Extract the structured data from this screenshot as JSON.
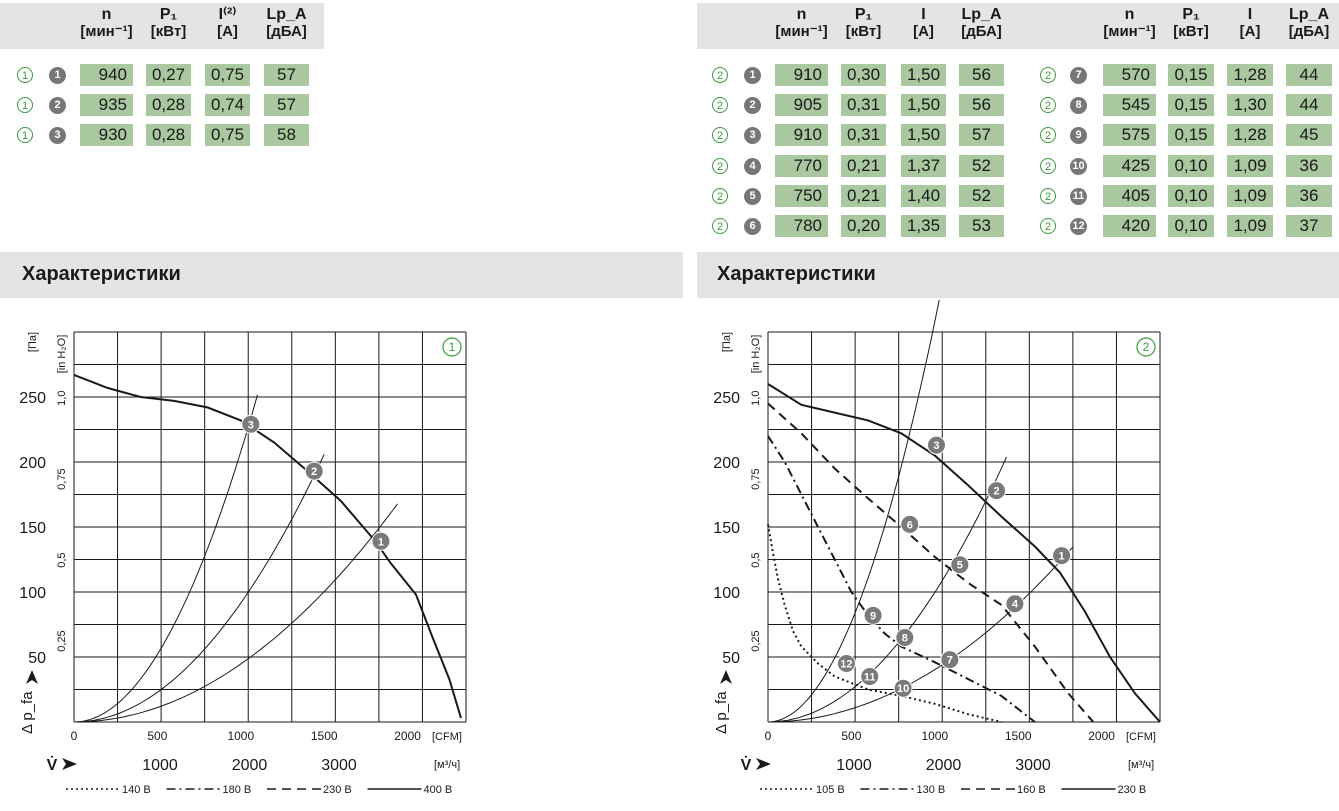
{
  "left_table": {
    "headers": [
      {
        "name": "n",
        "unit": "[мин⁻¹]"
      },
      {
        "name": "P₁",
        "unit": "[кВт]"
      },
      {
        "name": "I⁽²⁾",
        "unit": "[A]"
      },
      {
        "name": "Lp_A",
        "unit": "[дБА]"
      }
    ],
    "rows": [
      {
        "ring": "1",
        "id": "1",
        "n": "940",
        "p": "0,27",
        "i": "0,75",
        "lp": "57"
      },
      {
        "ring": "1",
        "id": "2",
        "n": "935",
        "p": "0,28",
        "i": "0,74",
        "lp": "57"
      },
      {
        "ring": "1",
        "id": "3",
        "n": "930",
        "p": "0,28",
        "i": "0,75",
        "lp": "58"
      }
    ]
  },
  "right_table": {
    "headers": [
      {
        "name": "n",
        "unit": "[мин⁻¹]"
      },
      {
        "name": "P₁",
        "unit": "[кВт]"
      },
      {
        "name": "I",
        "unit": "[A]"
      },
      {
        "name": "Lp_A",
        "unit": "[дБА]"
      }
    ],
    "rows_a": [
      {
        "ring": "2",
        "id": "1",
        "n": "910",
        "p": "0,30",
        "i": "1,50",
        "lp": "56"
      },
      {
        "ring": "2",
        "id": "2",
        "n": "905",
        "p": "0,31",
        "i": "1,50",
        "lp": "56"
      },
      {
        "ring": "2",
        "id": "3",
        "n": "910",
        "p": "0,31",
        "i": "1,50",
        "lp": "57"
      },
      {
        "ring": "2",
        "id": "4",
        "n": "770",
        "p": "0,21",
        "i": "1,37",
        "lp": "52"
      },
      {
        "ring": "2",
        "id": "5",
        "n": "750",
        "p": "0,21",
        "i": "1,40",
        "lp": "52"
      },
      {
        "ring": "2",
        "id": "6",
        "n": "780",
        "p": "0,20",
        "i": "1,35",
        "lp": "53"
      }
    ],
    "rows_b": [
      {
        "ring": "2",
        "id": "7",
        "n": "570",
        "p": "0,15",
        "i": "1,28",
        "lp": "44"
      },
      {
        "ring": "2",
        "id": "8",
        "n": "545",
        "p": "0,15",
        "i": "1,30",
        "lp": "44"
      },
      {
        "ring": "2",
        "id": "9",
        "n": "575",
        "p": "0,15",
        "i": "1,28",
        "lp": "45"
      },
      {
        "ring": "2",
        "id": "10",
        "n": "425",
        "p": "0,10",
        "i": "1,09",
        "lp": "36"
      },
      {
        "ring": "2",
        "id": "11",
        "n": "405",
        "p": "0,10",
        "i": "1,09",
        "lp": "36"
      },
      {
        "ring": "2",
        "id": "12",
        "n": "420",
        "p": "0,10",
        "i": "1,09",
        "lp": "37"
      }
    ]
  },
  "sections": {
    "left_title": "Характеристики",
    "right_title": "Характеристики"
  },
  "colors": {
    "cell_green": "#a9c89f",
    "ring_green": "#3a9a3a",
    "marker_grey": "#777777",
    "band": "#e4e4e4"
  },
  "chart_data": [
    {
      "type": "line",
      "badge": "1",
      "y_ticks_pa": [
        50,
        100,
        150,
        200,
        250
      ],
      "y_ticks_inh2o": [
        "0,25",
        "0,5",
        "0,75",
        "1,0"
      ],
      "y_unit_pa": "[Па]",
      "y_unit_inh2o": "[in H₂O]",
      "y_label": "Δ p_fa",
      "x_ticks_cfm": [
        0,
        500,
        1000,
        1500,
        2000
      ],
      "x_unit_cfm": "[CFM]",
      "x_ticks_m3h": [
        1000,
        2000,
        3000
      ],
      "x_unit_m3h": "[м³/ч]",
      "x_label": "V̇",
      "xlim_cfm": [
        0,
        2350
      ],
      "ylim_pa": [
        0,
        300
      ],
      "curves": [
        {
          "label": "400 В",
          "style": "solid",
          "points": [
            [
              0,
              267
            ],
            [
              200,
              257
            ],
            [
              400,
              250
            ],
            [
              600,
              247
            ],
            [
              800,
              242
            ],
            [
              1000,
              232
            ],
            [
              1200,
              215
            ],
            [
              1400,
              193
            ],
            [
              1600,
              170
            ],
            [
              1800,
              140
            ],
            [
              1900,
              122
            ],
            [
              2050,
              98
            ],
            [
              2150,
              65
            ],
            [
              2250,
              33
            ],
            [
              2320,
              3
            ]
          ]
        }
      ],
      "system_curves": [
        {
          "k": 0.000208,
          "x_end": 1100
        },
        {
          "k": 9.15e-05,
          "x_end": 1500
        },
        {
          "k": 4.46e-05,
          "x_end": 1940
        }
      ],
      "operating_points": [
        {
          "id": "3",
          "x": 1060,
          "y": 229
        },
        {
          "id": "2",
          "x": 1440,
          "y": 193
        },
        {
          "id": "1",
          "x": 1840,
          "y": 139
        }
      ],
      "legend": [
        {
          "label": "140 В",
          "style": "dotted"
        },
        {
          "label": "180 В",
          "style": "dashdot"
        },
        {
          "label": "230 В",
          "style": "dashed"
        },
        {
          "label": "400 В",
          "style": "solid"
        }
      ]
    },
    {
      "type": "line",
      "badge": "2",
      "y_ticks_pa": [
        50,
        100,
        150,
        200,
        250
      ],
      "y_ticks_inh2o": [
        "0,25",
        "0,5",
        "0,75",
        "1,0"
      ],
      "y_unit_pa": "[Па]",
      "y_unit_inh2o": "[in H₂O]",
      "y_label": "Δ p_fa",
      "x_ticks_cfm": [
        0,
        500,
        1000,
        1500,
        2000
      ],
      "x_unit_cfm": "[CFM]",
      "x_ticks_m3h": [
        1000,
        2000,
        3000
      ],
      "x_unit_m3h": "[м³/ч]",
      "x_label": "V̇",
      "xlim_cfm": [
        0,
        2350
      ],
      "ylim_pa": [
        0,
        300
      ],
      "curves": [
        {
          "label": "230 В",
          "style": "solid",
          "points": [
            [
              0,
              260
            ],
            [
              200,
              244
            ],
            [
              400,
              238
            ],
            [
              600,
              232
            ],
            [
              800,
              222
            ],
            [
              1000,
              205
            ],
            [
              1200,
              182
            ],
            [
              1400,
              158
            ],
            [
              1600,
              135
            ],
            [
              1750,
              115
            ],
            [
              1900,
              85
            ],
            [
              2050,
              50
            ],
            [
              2200,
              22
            ],
            [
              2350,
              0
            ]
          ]
        },
        {
          "label": "160 В",
          "style": "dashed",
          "points": [
            [
              0,
              245
            ],
            [
              200,
              222
            ],
            [
              400,
              195
            ],
            [
              600,
              172
            ],
            [
              800,
              150
            ],
            [
              1000,
              127
            ],
            [
              1200,
              107
            ],
            [
              1400,
              90
            ],
            [
              1600,
              58
            ],
            [
              1800,
              22
            ],
            [
              1950,
              0
            ]
          ]
        },
        {
          "label": "130 В",
          "style": "dashdot",
          "points": [
            [
              0,
              220
            ],
            [
              100,
              200
            ],
            [
              200,
              175
            ],
            [
              300,
              150
            ],
            [
              400,
              125
            ],
            [
              500,
              100
            ],
            [
              600,
              82
            ],
            [
              700,
              68
            ],
            [
              800,
              58
            ],
            [
              1000,
              46
            ],
            [
              1200,
              33
            ],
            [
              1400,
              20
            ],
            [
              1600,
              0
            ]
          ]
        },
        {
          "label": "105 В",
          "style": "dotted",
          "points": [
            [
              0,
              152
            ],
            [
              30,
              130
            ],
            [
              60,
              110
            ],
            [
              100,
              90
            ],
            [
              150,
              70
            ],
            [
              200,
              58
            ],
            [
              300,
              45
            ],
            [
              400,
              35
            ],
            [
              500,
              30
            ],
            [
              600,
              25
            ],
            [
              800,
              20
            ],
            [
              1000,
              14
            ],
            [
              1200,
              6
            ],
            [
              1400,
              0
            ]
          ]
        }
      ],
      "system_curves": [
        {
          "k": 0.000308,
          "x_end": 1050
        },
        {
          "k": 9.97e-05,
          "x_end": 1430
        },
        {
          "k": 4.03e-05,
          "x_end": 1830
        }
      ],
      "operating_points": [
        {
          "id": "3",
          "x": 1010,
          "y": 213
        },
        {
          "id": "2",
          "x": 1370,
          "y": 178
        },
        {
          "id": "1",
          "x": 1760,
          "y": 128
        },
        {
          "id": "6",
          "x": 850,
          "y": 152
        },
        {
          "id": "5",
          "x": 1150,
          "y": 121
        },
        {
          "id": "4",
          "x": 1480,
          "y": 91
        },
        {
          "id": "9",
          "x": 630,
          "y": 82
        },
        {
          "id": "8",
          "x": 820,
          "y": 65
        },
        {
          "id": "7",
          "x": 1090,
          "y": 48
        },
        {
          "id": "12",
          "x": 470,
          "y": 45
        },
        {
          "id": "11",
          "x": 610,
          "y": 35
        },
        {
          "id": "10",
          "x": 810,
          "y": 26
        }
      ],
      "legend": [
        {
          "label": "105 В",
          "style": "dotted"
        },
        {
          "label": "130 В",
          "style": "dashdot"
        },
        {
          "label": "160 В",
          "style": "dashed"
        },
        {
          "label": "230 В",
          "style": "solid"
        }
      ]
    }
  ]
}
